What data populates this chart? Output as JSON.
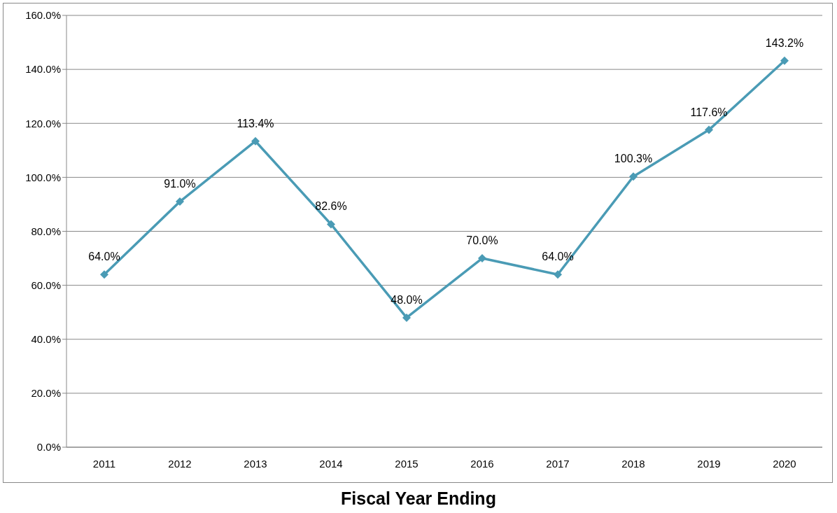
{
  "chart_data": {
    "type": "line",
    "xlabel": "Fiscal Year Ending",
    "categories": [
      "2011",
      "2012",
      "2013",
      "2014",
      "2015",
      "2016",
      "2017",
      "2018",
      "2019",
      "2020"
    ],
    "series": [
      {
        "color": "#4a9bb5",
        "values": [
          64.0,
          91.0,
          113.4,
          82.6,
          48.0,
          70.0,
          64.0,
          100.3,
          117.6,
          143.2
        ],
        "value_labels": [
          "64.0%",
          "91.0%",
          "113.4%",
          "82.6%",
          "48.0%",
          "70.0%",
          "64.0%",
          "100.3%",
          "117.6%",
          "143.2%"
        ]
      }
    ],
    "ylim": [
      0,
      160
    ],
    "yticks": [
      {
        "value": 0,
        "label": "0.0%"
      },
      {
        "value": 20,
        "label": "20.0%"
      },
      {
        "value": 40,
        "label": "40.0%"
      },
      {
        "value": 60,
        "label": "60.0%"
      },
      {
        "value": 80,
        "label": "80.0%"
      },
      {
        "value": 100,
        "label": "100.0%"
      },
      {
        "value": 120,
        "label": "120.0%"
      },
      {
        "value": 140,
        "label": "140.0%"
      },
      {
        "value": 160,
        "label": "160.0%"
      }
    ],
    "grid": "y",
    "marker": "diamond",
    "line_style": "solid"
  }
}
